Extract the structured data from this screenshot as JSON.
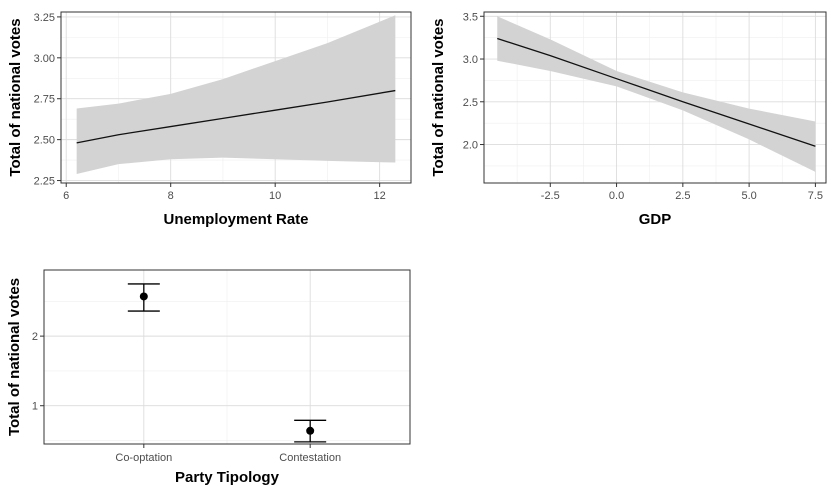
{
  "chart_data": [
    {
      "type": "line",
      "xlabel": "Unemployment Rate",
      "ylabel": "Total of national votes",
      "xlim": [
        5.9,
        12.6
      ],
      "ylim": [
        2.235,
        3.28
      ],
      "xticks": [
        6,
        8,
        10,
        12
      ],
      "xtick_labels": [
        "6",
        "8",
        "10",
        "12"
      ],
      "yticks": [
        2.25,
        2.5,
        2.75,
        3.0,
        3.25
      ],
      "ytick_labels": [
        "2.25",
        "2.50",
        "2.75",
        "3.00",
        "3.25"
      ],
      "grid": true,
      "series": [
        {
          "x": [
            6.2,
            7.0,
            8.0,
            9.0,
            10.0,
            11.0,
            12.3
          ],
          "y": [
            2.48,
            2.53,
            2.58,
            2.63,
            2.68,
            2.73,
            2.8
          ],
          "lower": [
            2.29,
            2.35,
            2.38,
            2.39,
            2.38,
            2.37,
            2.36
          ],
          "upper": [
            2.69,
            2.72,
            2.78,
            2.87,
            2.98,
            3.09,
            3.26
          ]
        }
      ]
    },
    {
      "type": "line",
      "xlabel": "GDP",
      "ylabel": "Total of national votes",
      "xlim": [
        -5.0,
        7.9
      ],
      "ylim": [
        1.55,
        3.55
      ],
      "xticks": [
        -2.5,
        0.0,
        2.5,
        5.0,
        7.5
      ],
      "xtick_labels": [
        "-2.5",
        "0.0",
        "2.5",
        "5.0",
        "7.5"
      ],
      "yticks": [
        2.0,
        2.5,
        3.0,
        3.5
      ],
      "ytick_labels": [
        "2.0",
        "2.5",
        "3.0",
        "3.5"
      ],
      "grid": true,
      "series": [
        {
          "x": [
            -4.5,
            -2.5,
            0.0,
            2.5,
            5.0,
            7.5
          ],
          "y": [
            3.24,
            3.04,
            2.77,
            2.5,
            2.24,
            1.98
          ],
          "lower": [
            2.98,
            2.86,
            2.68,
            2.4,
            2.06,
            1.68
          ],
          "upper": [
            3.5,
            3.23,
            2.86,
            2.61,
            2.42,
            2.27
          ]
        }
      ]
    },
    {
      "type": "scatter",
      "xlabel": "Party Tipology",
      "ylabel": "Total of national votes",
      "categories": [
        "Co-optation",
        "Contestation"
      ],
      "ylim": [
        0.45,
        2.95
      ],
      "yticks": [
        1,
        2
      ],
      "ytick_labels": [
        "1",
        "2"
      ],
      "grid": true,
      "series": [
        {
          "values": [
            2.57,
            0.64
          ],
          "lower": [
            2.36,
            0.48
          ],
          "upper": [
            2.75,
            0.79
          ]
        }
      ]
    }
  ]
}
